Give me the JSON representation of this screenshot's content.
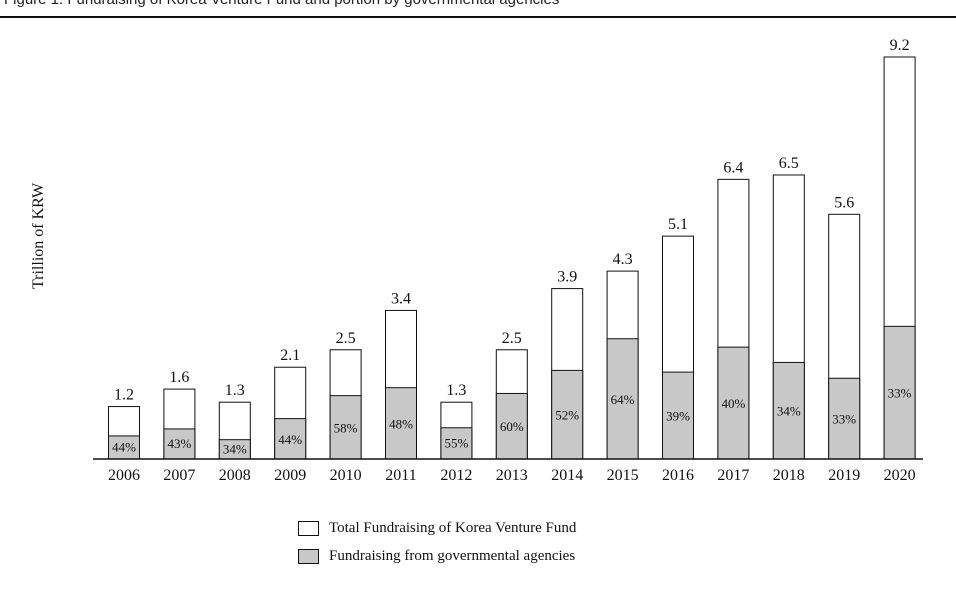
{
  "caption": "Figure 1. Fundraising of Korea Venture Fund and portion by governmental agencies",
  "chart_data": {
    "type": "bar",
    "categories": [
      "2006",
      "2007",
      "2008",
      "2009",
      "2010",
      "2011",
      "2012",
      "2013",
      "2014",
      "2015",
      "2016",
      "2017",
      "2018",
      "2019",
      "2020"
    ],
    "series": [
      {
        "name": "Total Fundraising of Korea Venture Fund",
        "values": [
          1.2,
          1.6,
          1.3,
          2.1,
          2.5,
          3.4,
          1.3,
          2.5,
          3.9,
          4.3,
          5.1,
          6.4,
          6.5,
          5.6,
          9.2
        ],
        "labels": [
          "1.2",
          "1.6",
          "1.3",
          "2.1",
          "2.5",
          "3.4",
          "1.3",
          "2.5",
          "3.9",
          "4.3",
          "5.1",
          "6.4",
          "6.5",
          "5.6",
          "9.2"
        ],
        "color": "#ffffff"
      },
      {
        "name": "Fundraising from governmental agencies",
        "share_percent": [
          44,
          43,
          34,
          44,
          58,
          48,
          55,
          60,
          52,
          64,
          39,
          40,
          34,
          33,
          33
        ],
        "labels": [
          "44%",
          "43%",
          "34%",
          "44%",
          "58%",
          "48%",
          "55%",
          "60%",
          "52%",
          "64%",
          "39%",
          "40%",
          "34%",
          "33%",
          "33%"
        ],
        "color": "#c8c8c8"
      }
    ],
    "ylabel": "Trillion of KRW",
    "ylim": [
      0,
      9.2
    ],
    "grid": false,
    "legend_position": "bottom-center"
  }
}
